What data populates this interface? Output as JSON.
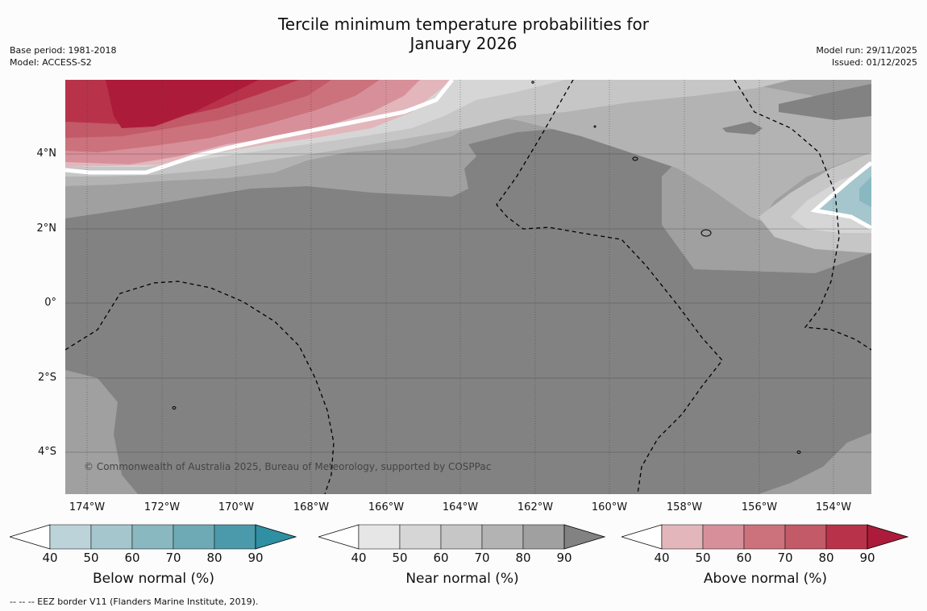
{
  "title_line1": "Tercile minimum temperature probabilities for",
  "title_line2": "January 2026",
  "base_period": "Base period: 1981-2018",
  "model": "Model: ACCESS-S2",
  "model_run": "Model run: 29/11/2025",
  "issued": "Issued: 01/12/2025",
  "lat_labels": [
    "4°N",
    "2°N",
    "0°",
    "2°S",
    "4°S"
  ],
  "lon_labels": [
    "174°W",
    "172°W",
    "170°W",
    "168°W",
    "166°W",
    "164°W",
    "162°W",
    "160°W",
    "158°W",
    "156°W",
    "154°W"
  ],
  "copyright": "© Commonwealth of Australia 2025, Bureau of Meteorology, supported by COSPPac",
  "footer": "--  --  -- EEZ border V11 (Flanders Marine Institute, 2019).",
  "colorbars": [
    {
      "label": "Below normal (%)",
      "ticks": [
        "40",
        "50",
        "60",
        "70",
        "80",
        "90"
      ],
      "colors": [
        "#bcd3d9",
        "#a5c6cc",
        "#8ab8c0",
        "#6eaab6",
        "#4b9aab",
        "#2f8fa3"
      ]
    },
    {
      "label": "Near normal (%)",
      "ticks": [
        "40",
        "50",
        "60",
        "70",
        "80",
        "90"
      ],
      "colors": [
        "#e6e6e6",
        "#d6d6d6",
        "#c6c6c6",
        "#b3b3b3",
        "#a0a0a0",
        "#828282"
      ]
    },
    {
      "label": "Above normal (%)",
      "ticks": [
        "40",
        "50",
        "60",
        "70",
        "80",
        "90"
      ],
      "colors": [
        "#e3b6bb",
        "#d7909a",
        "#cb727c",
        "#c25a68",
        "#b8334a",
        "#ad1b3b"
      ]
    }
  ]
}
